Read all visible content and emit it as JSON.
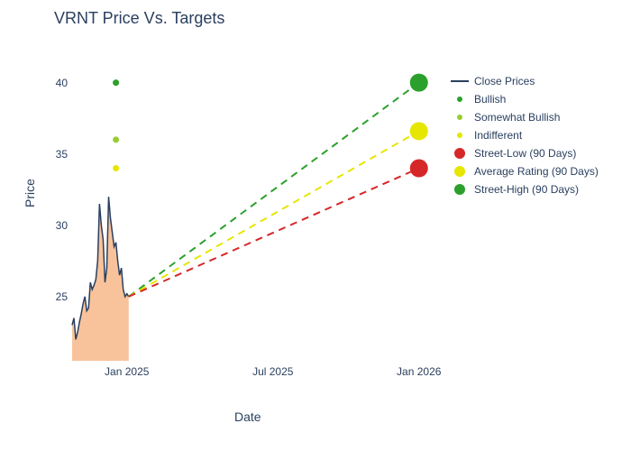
{
  "chart": {
    "type": "line+scatter",
    "title": "VRNT Price Vs. Targets",
    "title_fontsize": 18,
    "title_color": "#2a3f5f",
    "x_axis": {
      "label": "Date",
      "ticks": [
        {
          "v": 0.15,
          "l": "Jan 2025"
        },
        {
          "v": 0.55,
          "l": "Jul 2025"
        },
        {
          "v": 0.95,
          "l": "Jan 2026"
        }
      ],
      "label_fontsize": 14
    },
    "y_axis": {
      "label": "Price",
      "ticks": [
        25,
        30,
        35,
        40
      ],
      "ylim": [
        20.5,
        42
      ],
      "label_fontsize": 14
    },
    "tick_fontsize": 12,
    "text_color": "#2a3f5f",
    "background_color": "#ffffff",
    "plot_area_fill": "#e5ecf6",
    "grid_color": "#ffffff",
    "grid_width": 1,
    "close_prices": {
      "color": "#2a3f5f",
      "line_width": 1.5,
      "fill_color": "#f7b98a",
      "fill_opacity": 0.85,
      "x": [
        0.0,
        0.005,
        0.01,
        0.015,
        0.02,
        0.025,
        0.03,
        0.035,
        0.04,
        0.045,
        0.05,
        0.055,
        0.06,
        0.065,
        0.07,
        0.075,
        0.08,
        0.085,
        0.09,
        0.095,
        0.1,
        0.105,
        0.11,
        0.115,
        0.12,
        0.125,
        0.13,
        0.135,
        0.14,
        0.145,
        0.15,
        0.155
      ],
      "y": [
        23.0,
        23.5,
        22.0,
        22.5,
        23.2,
        23.8,
        24.5,
        25.0,
        24.0,
        24.2,
        26.0,
        25.5,
        25.8,
        26.2,
        27.5,
        31.5,
        30.0,
        29.0,
        26.0,
        27.0,
        32.0,
        30.5,
        29.5,
        28.5,
        28.8,
        27.5,
        26.5,
        27.0,
        25.5,
        25.0,
        25.2,
        25.0
      ]
    },
    "analyst_points": [
      {
        "name": "bullish",
        "x": 0.12,
        "y": 40,
        "color": "#2ca02c",
        "r": 3.5
      },
      {
        "name": "somewhat-bullish",
        "x": 0.12,
        "y": 36,
        "color": "#9acd32",
        "r": 3.5
      },
      {
        "name": "indifferent",
        "x": 0.12,
        "y": 34,
        "color": "#e6e600",
        "r": 3.5
      }
    ],
    "target_lines": [
      {
        "name": "street-high",
        "x0": 0.155,
        "y0": 25,
        "x1": 0.95,
        "y1": 40,
        "color": "#2ca02c",
        "dash": "8,6",
        "width": 2
      },
      {
        "name": "average-rating",
        "x0": 0.155,
        "y0": 25,
        "x1": 0.95,
        "y1": 36.6,
        "color": "#e6e600",
        "dash": "8,6",
        "width": 2
      },
      {
        "name": "street-low",
        "x0": 0.155,
        "y0": 25,
        "x1": 0.95,
        "y1": 34,
        "color": "#d62728",
        "dash": "8,6",
        "width": 2
      }
    ],
    "target_markers": [
      {
        "name": "street-high-marker",
        "x": 0.95,
        "y": 40,
        "color": "#2ca02c",
        "r": 10
      },
      {
        "name": "average-rating-marker",
        "x": 0.95,
        "y": 36.6,
        "color": "#e6e600",
        "r": 10
      },
      {
        "name": "street-low-marker",
        "x": 0.95,
        "y": 34,
        "color": "#d62728",
        "r": 10
      }
    ],
    "legend": {
      "items": [
        {
          "type": "line",
          "color": "#2a3f5f",
          "label": "Close Prices"
        },
        {
          "type": "dot-s",
          "color": "#2ca02c",
          "label": "Bullish"
        },
        {
          "type": "dot-s",
          "color": "#9acd32",
          "label": "Somewhat Bullish"
        },
        {
          "type": "dot-s",
          "color": "#e6e600",
          "label": "Indifferent"
        },
        {
          "type": "dot-l",
          "color": "#d62728",
          "label": "Street-Low (90 Days)"
        },
        {
          "type": "dot-l",
          "color": "#e6e600",
          "label": "Average Rating (90 Days)"
        },
        {
          "type": "dot-l",
          "color": "#2ca02c",
          "label": "Street-High (90 Days)"
        }
      ]
    }
  }
}
